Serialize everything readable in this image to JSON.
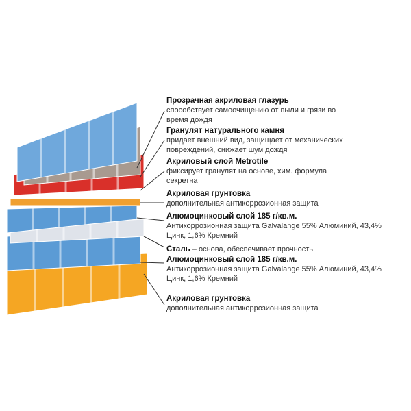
{
  "layers": [
    {
      "title": "Прозрачная акриловая глазурь",
      "desc": [
        "способствует самоочищению от пыли и грязи  во",
        "время дождя"
      ],
      "color": "#6fa8dc"
    },
    {
      "title": "Гранулят натурального камня",
      "desc": [
        "придает внешний вид, защищает от механических",
        "повреждений, снижает шум дождя"
      ],
      "color": "#a89a90"
    },
    {
      "title": "Акриловый слой Metrotile",
      "desc": [
        "фиксирует гранулят на основе, хим. формула",
        "секретна"
      ],
      "color": "#d9302a"
    },
    {
      "title": "Акриловая грунтовка",
      "desc": [
        "дополнительная антикоррозионная защита"
      ],
      "color": "#f0a030"
    },
    {
      "title": "Алюмоцинковый слой 185 г/кв.м.",
      "desc": [
        "Антикоррозионная защита Galvalange 55% Алюминий, 43,4%",
        "Цинк, 1,6% Кремний"
      ],
      "color": "#5b9bd5"
    },
    {
      "title": "Сталь",
      "desc": [
        " – основа, обеспечивает прочность"
      ],
      "color": "#dfe3ea"
    },
    {
      "title": "Алюмоцинковый слой 185 г/кв.м.",
      "desc": [
        "Антикоррозионная защита Galvalange 55% Алюминий, 43,4%",
        "Цинк, 1,6% Кремний"
      ],
      "color": "#5b9bd5"
    },
    {
      "title": "Акриловая грунтовка",
      "desc": [
        "дополнительная антикоррозионная защита"
      ],
      "color": "#f5a623"
    }
  ]
}
